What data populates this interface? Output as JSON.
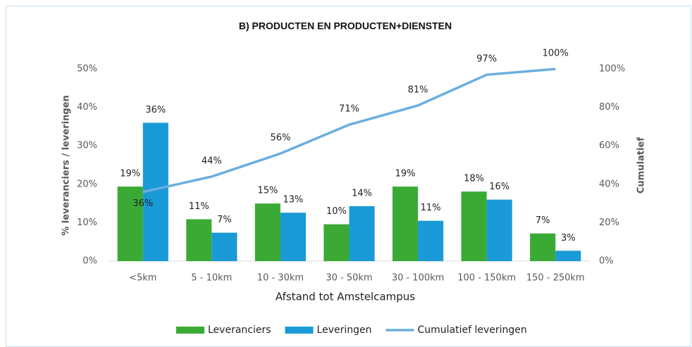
{
  "chart_data": {
    "type": "bar",
    "title": "B) PRODUCTEN EN PRODUCTEN+DIENSTEN",
    "x_label": "Afstand tot Amstelcampus",
    "y_label": "% leveranciers / leveringen",
    "y2_label": "Cumulatief",
    "categories": [
      "<5km",
      "5 - 10km",
      "10 - 30km",
      "30 - 50km",
      "30 - 100km",
      "100 - 150km",
      "150 - 250km"
    ],
    "series": [
      {
        "name": "Leveranciers",
        "type": "bar",
        "color": "#3aaa35",
        "values": [
          19.4,
          10.9,
          15,
          9.6,
          19.4,
          18.1,
          7.2
        ],
        "value_labels": [
          "19%",
          "11%",
          "15%",
          "10%",
          "19%",
          "18%",
          "7%"
        ]
      },
      {
        "name": "Leveringen",
        "type": "bar",
        "color": "#1a9ad6",
        "values": [
          36,
          7.4,
          12.6,
          14.3,
          10.5,
          16,
          2.7
        ],
        "value_labels": [
          "36%",
          "7%",
          "13%",
          "14%",
          "11%",
          "16%",
          "3%"
        ]
      },
      {
        "name": "Cumulatief leveringen",
        "type": "line",
        "axis": "y2",
        "color": "#6aaee0",
        "values": [
          36,
          44,
          56,
          71,
          81,
          97,
          100
        ],
        "value_labels": [
          "36%",
          "44%",
          "56%",
          "71%",
          "81%",
          "97%",
          "100%"
        ]
      }
    ],
    "ylim": [
      0,
      50
    ],
    "yticks": [
      {
        "value": 0,
        "label": "0%"
      },
      {
        "value": 10,
        "label": "10%"
      },
      {
        "value": 20,
        "label": "20%"
      },
      {
        "value": 30,
        "label": "30%"
      },
      {
        "value": 40,
        "label": "40%"
      },
      {
        "value": 50,
        "label": "50%"
      }
    ],
    "y2lim": [
      0,
      100
    ],
    "y2ticks": [
      {
        "value": 0,
        "label": "0%"
      },
      {
        "value": 20,
        "label": "20%"
      },
      {
        "value": 40,
        "label": "40%"
      },
      {
        "value": 60,
        "label": "60%"
      },
      {
        "value": 80,
        "label": "80%"
      },
      {
        "value": 100,
        "label": "100%"
      }
    ],
    "grid": false,
    "legend": "bottom"
  }
}
